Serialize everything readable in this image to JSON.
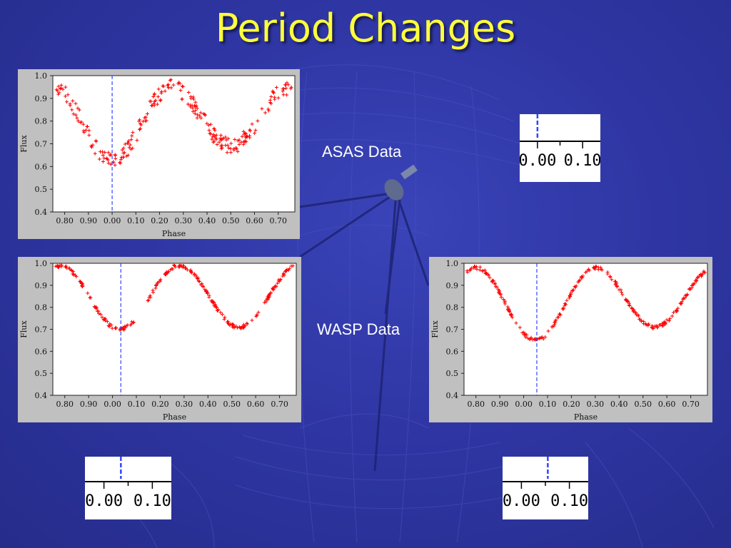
{
  "slide": {
    "title": "Period Changes",
    "captions": {
      "asas": "ASAS Data",
      "wasp": "WASP Data"
    }
  },
  "colors": {
    "title": "#ffff3c",
    "points": "#ff0000",
    "marker_line": "#3344ff",
    "panel_bg": "#c0c0c0",
    "background": "#2f36a4"
  },
  "chart_data": [
    {
      "type": "scatter",
      "title": "",
      "xlabel": "Phase",
      "ylabel": "Flux",
      "xlim": [
        -0.25,
        0.77
      ],
      "ylim": [
        0.4,
        1.0
      ],
      "x_tick_labels": [
        "0.80",
        "0.90",
        "0.00",
        "0.10",
        "0.20",
        "0.30",
        "0.40",
        "0.50",
        "0.60",
        "0.70"
      ],
      "y_tick_labels": [
        "0.4",
        "0.5",
        "0.6",
        "0.7",
        "0.8",
        "0.9",
        "1.0"
      ],
      "marker_phase": 0.0,
      "series": [
        {
          "shape": "sinusoid",
          "min_phases": [
            0.0,
            0.5
          ],
          "min_flux": [
            0.63,
            0.69
          ],
          "max_flux": 0.95,
          "scatter": 0.035
        }
      ]
    },
    {
      "type": "scatter",
      "title": "",
      "xlabel": "Phase",
      "ylabel": "Flux",
      "xlim": [
        -0.25,
        0.77
      ],
      "ylim": [
        0.4,
        1.0
      ],
      "x_tick_labels": [
        "0.80",
        "0.90",
        "0.00",
        "0.10",
        "0.20",
        "0.30",
        "0.40",
        "0.50",
        "0.60",
        "0.70"
      ],
      "y_tick_labels": [
        "0.4",
        "0.5",
        "0.6",
        "0.7",
        "0.8",
        "0.9",
        "1.0"
      ],
      "marker_phase": 0.035,
      "series": [
        {
          "shape": "sinusoid",
          "min_phases": [
            0.03,
            0.53
          ],
          "min_flux": [
            0.7,
            0.71
          ],
          "max_flux": 0.99,
          "scatter": 0.008
        }
      ]
    },
    {
      "type": "scatter",
      "title": "",
      "xlabel": "Phase",
      "ylabel": "Flux",
      "xlim": [
        -0.25,
        0.77
      ],
      "ylim": [
        0.4,
        1.0
      ],
      "x_tick_labels": [
        "0.80",
        "0.90",
        "0.00",
        "0.10",
        "0.20",
        "0.30",
        "0.40",
        "0.50",
        "0.60",
        "0.70"
      ],
      "y_tick_labels": [
        "0.4",
        "0.5",
        "0.6",
        "0.7",
        "0.8",
        "0.9",
        "1.0"
      ],
      "marker_phase": 0.055,
      "series": [
        {
          "shape": "sinusoid",
          "min_phases": [
            0.05,
            0.55
          ],
          "min_flux": [
            0.65,
            0.71
          ],
          "max_flux": 0.98,
          "scatter": 0.008
        }
      ]
    }
  ],
  "zoom_insets": [
    {
      "tick_labels": [
        "0.00",
        "0.10"
      ],
      "marker_phase": 0.0
    },
    {
      "tick_labels": [
        "0.00",
        "0.10"
      ],
      "marker_phase": 0.035
    },
    {
      "tick_labels": [
        "0.00",
        "0.10"
      ],
      "marker_phase": 0.055
    }
  ]
}
